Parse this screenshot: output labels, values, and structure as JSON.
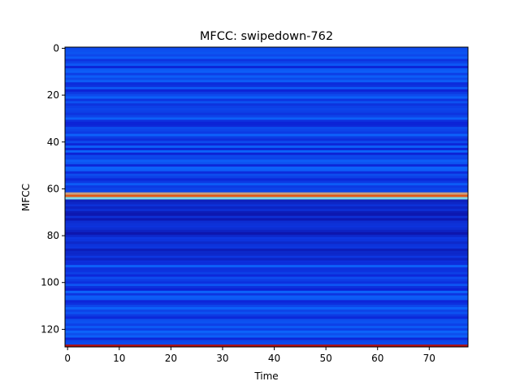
{
  "chart_data": {
    "type": "heatmap",
    "title": "MFCC: swipedown-762",
    "xlabel": "Time",
    "ylabel": "MFCC",
    "xlim": [
      -0.5,
      77.5
    ],
    "ylim": [
      127.5,
      -0.5
    ],
    "x_ticks": [
      0,
      10,
      20,
      30,
      40,
      50,
      60,
      70
    ],
    "y_ticks": [
      0,
      20,
      40,
      60,
      80,
      100,
      120
    ],
    "n_time": 78,
    "n_coeffs": 128,
    "colormap": "jet",
    "dominant_color": "#1238f0",
    "bright_rows": [
      {
        "row": 62,
        "color": "#c8a080"
      },
      {
        "row": 63,
        "color": "#e05818"
      },
      {
        "row": 64,
        "color": "#7fd8e8"
      },
      {
        "row": 127,
        "color": "#b01010"
      }
    ],
    "dark_region_rows": [
      65,
      90
    ],
    "grid": false,
    "legend": "none"
  }
}
